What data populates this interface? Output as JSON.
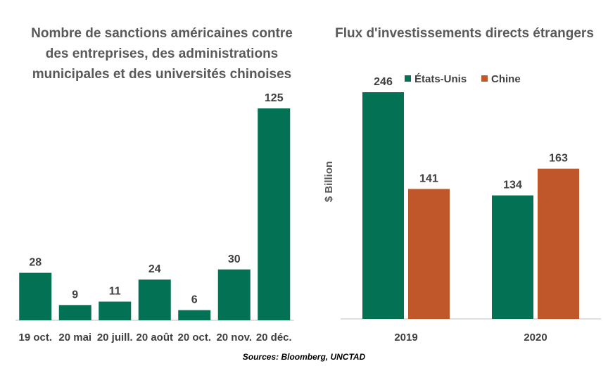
{
  "colors": {
    "green": "#037153",
    "orange": "#c0572a",
    "axis": "#bfbfbf"
  },
  "chart_data": [
    {
      "type": "bar",
      "title": "Nombre de sanctions américaines contre des entreprises, des administrations municipales et des universités chinoises",
      "categories": [
        "19 oct.",
        "20 mai",
        "20 juill.",
        "20 août",
        "20 oct.",
        "20 nov.",
        "20 déc."
      ],
      "values": [
        28,
        9,
        11,
        24,
        6,
        30,
        125
      ],
      "value_labels": [
        "28",
        "9",
        "11",
        "24",
        "6",
        "30",
        "125"
      ],
      "ylim": [
        0,
        125
      ],
      "grid": false,
      "legend": false
    },
    {
      "type": "bar",
      "title": "Flux d'investissements directs étrangers",
      "ylabel": "$ Billion",
      "categories": [
        "2019",
        "2020"
      ],
      "series": [
        {
          "name": "États-Unis",
          "values": [
            246,
            134
          ],
          "value_labels": [
            "246",
            "134"
          ]
        },
        {
          "name": "Chine",
          "values": [
            141,
            163
          ],
          "value_labels": [
            "141",
            "163"
          ]
        }
      ],
      "ylim": [
        0,
        246
      ],
      "grid": false,
      "legend_position": "top"
    }
  ],
  "source": "Sources: Bloomberg, UNCTAD"
}
